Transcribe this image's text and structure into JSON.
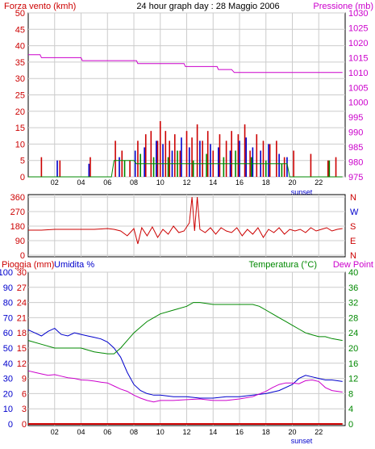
{
  "chart_data": [
    {
      "type": "line",
      "title": "24 hour graph day : 28 Maggio 2006",
      "left_axis_label": "Forza vento (kmh)",
      "right_axis_label": "Pressione (mb)",
      "x_ticks": [
        "02",
        "04",
        "06",
        "08",
        "10",
        "12",
        "14",
        "16",
        "18",
        "20",
        "22"
      ],
      "x_marker": "sunset",
      "x_marker_hour": 20.7,
      "xlim": [
        0,
        24
      ],
      "left_ylim": [
        0,
        50
      ],
      "left_ticks": [
        0,
        5,
        10,
        15,
        20,
        25,
        30,
        35,
        40,
        45,
        50
      ],
      "right_ylim": [
        975,
        1030
      ],
      "right_ticks": [
        975,
        980,
        985,
        990,
        995,
        1000,
        1005,
        1010,
        1015,
        1020,
        1025,
        1030
      ],
      "colors": {
        "left_axis": "#cc0000",
        "right_axis": "#cc00cc",
        "grid": "#cccccc"
      },
      "series": [
        {
          "color": "#cc00cc",
          "axis": "right",
          "x": [
            0,
            0.9,
            1.0,
            4.0,
            4.1,
            8.2,
            8.3,
            11.8,
            11.9,
            14.3,
            14.4,
            15.4,
            15.6,
            23.8
          ],
          "y": [
            1016,
            1016,
            1015,
            1015,
            1014,
            1014,
            1013,
            1013,
            1012,
            1012,
            1011,
            1011,
            1010,
            1010
          ]
        },
        {
          "color": "#cc0000",
          "axis": "left",
          "style": "bars",
          "bars_x": [
            1.0,
            2.4,
            4.7,
            6.6,
            7.1,
            7.7,
            8.3,
            8.9,
            9.3,
            9.8,
            10.0,
            10.4,
            10.7,
            11.1,
            11.5,
            12.0,
            12.4,
            12.8,
            13.2,
            13.6,
            14.0,
            14.5,
            15.0,
            15.4,
            15.9,
            16.4,
            16.8,
            17.3,
            17.8,
            18.3,
            18.8,
            19.4,
            20.1,
            21.4,
            22.7,
            23.3
          ],
          "bars_y": [
            6,
            5,
            6,
            11,
            8,
            5,
            11,
            13,
            14,
            11,
            17,
            14,
            11,
            13,
            8,
            14,
            12,
            16,
            11,
            14,
            8,
            13,
            11,
            14,
            13,
            16,
            8,
            13,
            11,
            10,
            11,
            6,
            8,
            7,
            5,
            6
          ]
        },
        {
          "color": "#0000cc",
          "axis": "left",
          "style": "bars",
          "bars_x": [
            2.2,
            4.6,
            6.9,
            8.1,
            8.8,
            9.7,
            10.2,
            10.9,
            11.6,
            12.2,
            13.0,
            13.8,
            14.4,
            15.3,
            16.0,
            16.5,
            17.0,
            17.6,
            18.2,
            19.0,
            19.6
          ],
          "bars_y": [
            5,
            4,
            6,
            8,
            9,
            11,
            10,
            8,
            12,
            9,
            11,
            10,
            9,
            8,
            11,
            12,
            9,
            8,
            10,
            7,
            6
          ]
        },
        {
          "color": "#008800",
          "axis": "left",
          "style": "bars",
          "bars_x": [
            7.3,
            8.5,
            9.5,
            10.6,
            11.3,
            12.5,
            13.5,
            14.8,
            15.7,
            16.9,
            18.0,
            19.2,
            22.8
          ],
          "bars_y": [
            5,
            7,
            6,
            6,
            8,
            5,
            7,
            6,
            8,
            6,
            5,
            4,
            5
          ]
        },
        {
          "color": "#008800",
          "axis": "left",
          "x": [
            0,
            6.3,
            6.5,
            8.0,
            8.2,
            19.6,
            19.8,
            23.8
          ],
          "y": [
            0,
            0,
            5,
            5,
            4,
            4,
            0,
            0
          ]
        }
      ]
    },
    {
      "type": "scatter",
      "title": "",
      "left_ticks": [
        0,
        90,
        180,
        270,
        360
      ],
      "right_labels": [
        "N",
        "E",
        "S",
        "W",
        "N"
      ],
      "right_label_colors": [
        "#cc0000",
        "#cc0000",
        "#cc0000",
        "#0000cc",
        "#cc0000"
      ],
      "ylim": [
        0,
        360
      ],
      "xlim": [
        0,
        24
      ],
      "x_ticks": [
        "02",
        "04",
        "06",
        "08",
        "10",
        "12",
        "14",
        "16",
        "18",
        "20",
        "22"
      ],
      "x_marker": "sunset",
      "x_marker_hour": 20.7,
      "series": [
        {
          "color": "#cc0000",
          "x": [
            0,
            1,
            2,
            3,
            4,
            5,
            6,
            6.5,
            7,
            7.5,
            8,
            8.3,
            8.6,
            9,
            9.4,
            9.8,
            10.2,
            10.6,
            11,
            11.4,
            11.8,
            12.2,
            12.4,
            12.6,
            12.8,
            13.0,
            13.4,
            13.8,
            14.2,
            14.6,
            15,
            15.4,
            15.8,
            16.2,
            16.6,
            17,
            17.4,
            17.8,
            18.2,
            18.6,
            19,
            19.4,
            19.8,
            20.2,
            20.6,
            21,
            21.4,
            21.8,
            22.2,
            22.6,
            23,
            23.4,
            23.8
          ],
          "y": [
            155,
            155,
            160,
            160,
            160,
            160,
            165,
            160,
            150,
            120,
            165,
            70,
            170,
            120,
            175,
            110,
            160,
            130,
            180,
            140,
            150,
            200,
            360,
            150,
            360,
            160,
            140,
            170,
            130,
            170,
            150,
            140,
            170,
            120,
            160,
            130,
            170,
            110,
            160,
            140,
            170,
            130,
            160,
            150,
            160,
            140,
            170,
            150,
            160,
            170,
            150,
            160,
            165
          ]
        }
      ]
    },
    {
      "type": "line",
      "title": "",
      "left_axis_label_1": "Pioggia (mm)",
      "left_axis_label_2": "Umidita %",
      "right_axis_label_1": "Temperatura (°C)",
      "right_axis_label_2": "Dew Point",
      "left_ticks_rain": [
        0,
        3,
        6,
        9,
        12,
        15,
        18,
        21,
        24,
        27,
        30
      ],
      "left_ticks_humidity": [
        0,
        10,
        20,
        30,
        40,
        50,
        60,
        70,
        80,
        90,
        100
      ],
      "right_ticks": [
        0,
        4,
        8,
        12,
        16,
        20,
        24,
        28,
        32,
        36,
        40
      ],
      "ylim_humidity": [
        0,
        100
      ],
      "ylim_temp": [
        0,
        40
      ],
      "xlim": [
        0,
        24
      ],
      "x_ticks": [
        "02",
        "04",
        "06",
        "08",
        "10",
        "12",
        "14",
        "16",
        "18",
        "20",
        "22"
      ],
      "x_marker": "sunset",
      "x_marker_hour": 20.7,
      "series": [
        {
          "color": "#0000cc",
          "axis": "humidity",
          "x": [
            0,
            0.5,
            1,
            1.5,
            2,
            2.5,
            3,
            3.5,
            4,
            4.5,
            5,
            5.5,
            6,
            6.5,
            7,
            7.5,
            8,
            8.5,
            9,
            9.5,
            10,
            11,
            12,
            13,
            14,
            15,
            16,
            17,
            18,
            19,
            20,
            20.5,
            21,
            21.5,
            22,
            22.5,
            23,
            23.8
          ],
          "y": [
            62,
            60,
            58,
            61,
            63,
            59,
            58,
            60,
            59,
            58,
            57,
            56,
            54,
            50,
            44,
            34,
            26,
            22,
            20,
            19,
            19,
            18,
            18,
            17,
            17,
            18,
            18,
            19,
            20,
            22,
            26,
            30,
            32,
            31,
            30,
            29,
            29,
            28
          ]
        },
        {
          "color": "#008800",
          "axis": "temp",
          "x": [
            0,
            1,
            2,
            3,
            4,
            5,
            6,
            6.5,
            7,
            7.5,
            8,
            8.5,
            9,
            9.5,
            10,
            11,
            12,
            12.5,
            13,
            14,
            15,
            16,
            17,
            17.5,
            18,
            18.5,
            19,
            19.5,
            20,
            20.5,
            21,
            21.5,
            22,
            22.5,
            23,
            23.8
          ],
          "y": [
            22,
            21,
            20,
            20,
            20,
            19,
            18.5,
            18.5,
            20,
            22,
            24,
            25.5,
            27,
            28,
            29,
            30,
            31,
            32,
            32,
            31.5,
            31.5,
            31.5,
            31.5,
            31,
            30,
            29,
            28,
            27,
            26,
            25,
            24,
            23.5,
            23,
            23,
            22.5,
            22
          ]
        },
        {
          "color": "#cc00cc",
          "axis": "temp",
          "x": [
            0,
            0.5,
            1,
            1.5,
            2,
            2.5,
            3,
            3.5,
            4,
            4.5,
            5,
            5.5,
            6,
            6.5,
            7,
            7.5,
            8,
            8.5,
            9,
            9.5,
            10,
            11,
            12,
            13,
            14,
            15,
            16,
            17,
            18,
            18.5,
            19,
            19.5,
            20,
            20.5,
            21,
            21.5,
            22,
            22.5,
            23,
            23.8
          ],
          "y": [
            14,
            13.6,
            13.2,
            12.8,
            13,
            12.6,
            12.2,
            12,
            11.6,
            11.5,
            11.3,
            11,
            10.8,
            10,
            9.2,
            8.6,
            7.6,
            6.8,
            6.2,
            5.8,
            6.2,
            6.2,
            6.4,
            6.6,
            6.2,
            6.2,
            6.6,
            7.2,
            8.6,
            9.6,
            10.4,
            10.8,
            10.8,
            10.6,
            11.4,
            11.6,
            11.2,
            9.6,
            8.8,
            8.4
          ]
        },
        {
          "color": "#cc0000",
          "axis": "rain",
          "x": [
            0,
            23.8
          ],
          "y": [
            0,
            0
          ]
        }
      ]
    }
  ]
}
